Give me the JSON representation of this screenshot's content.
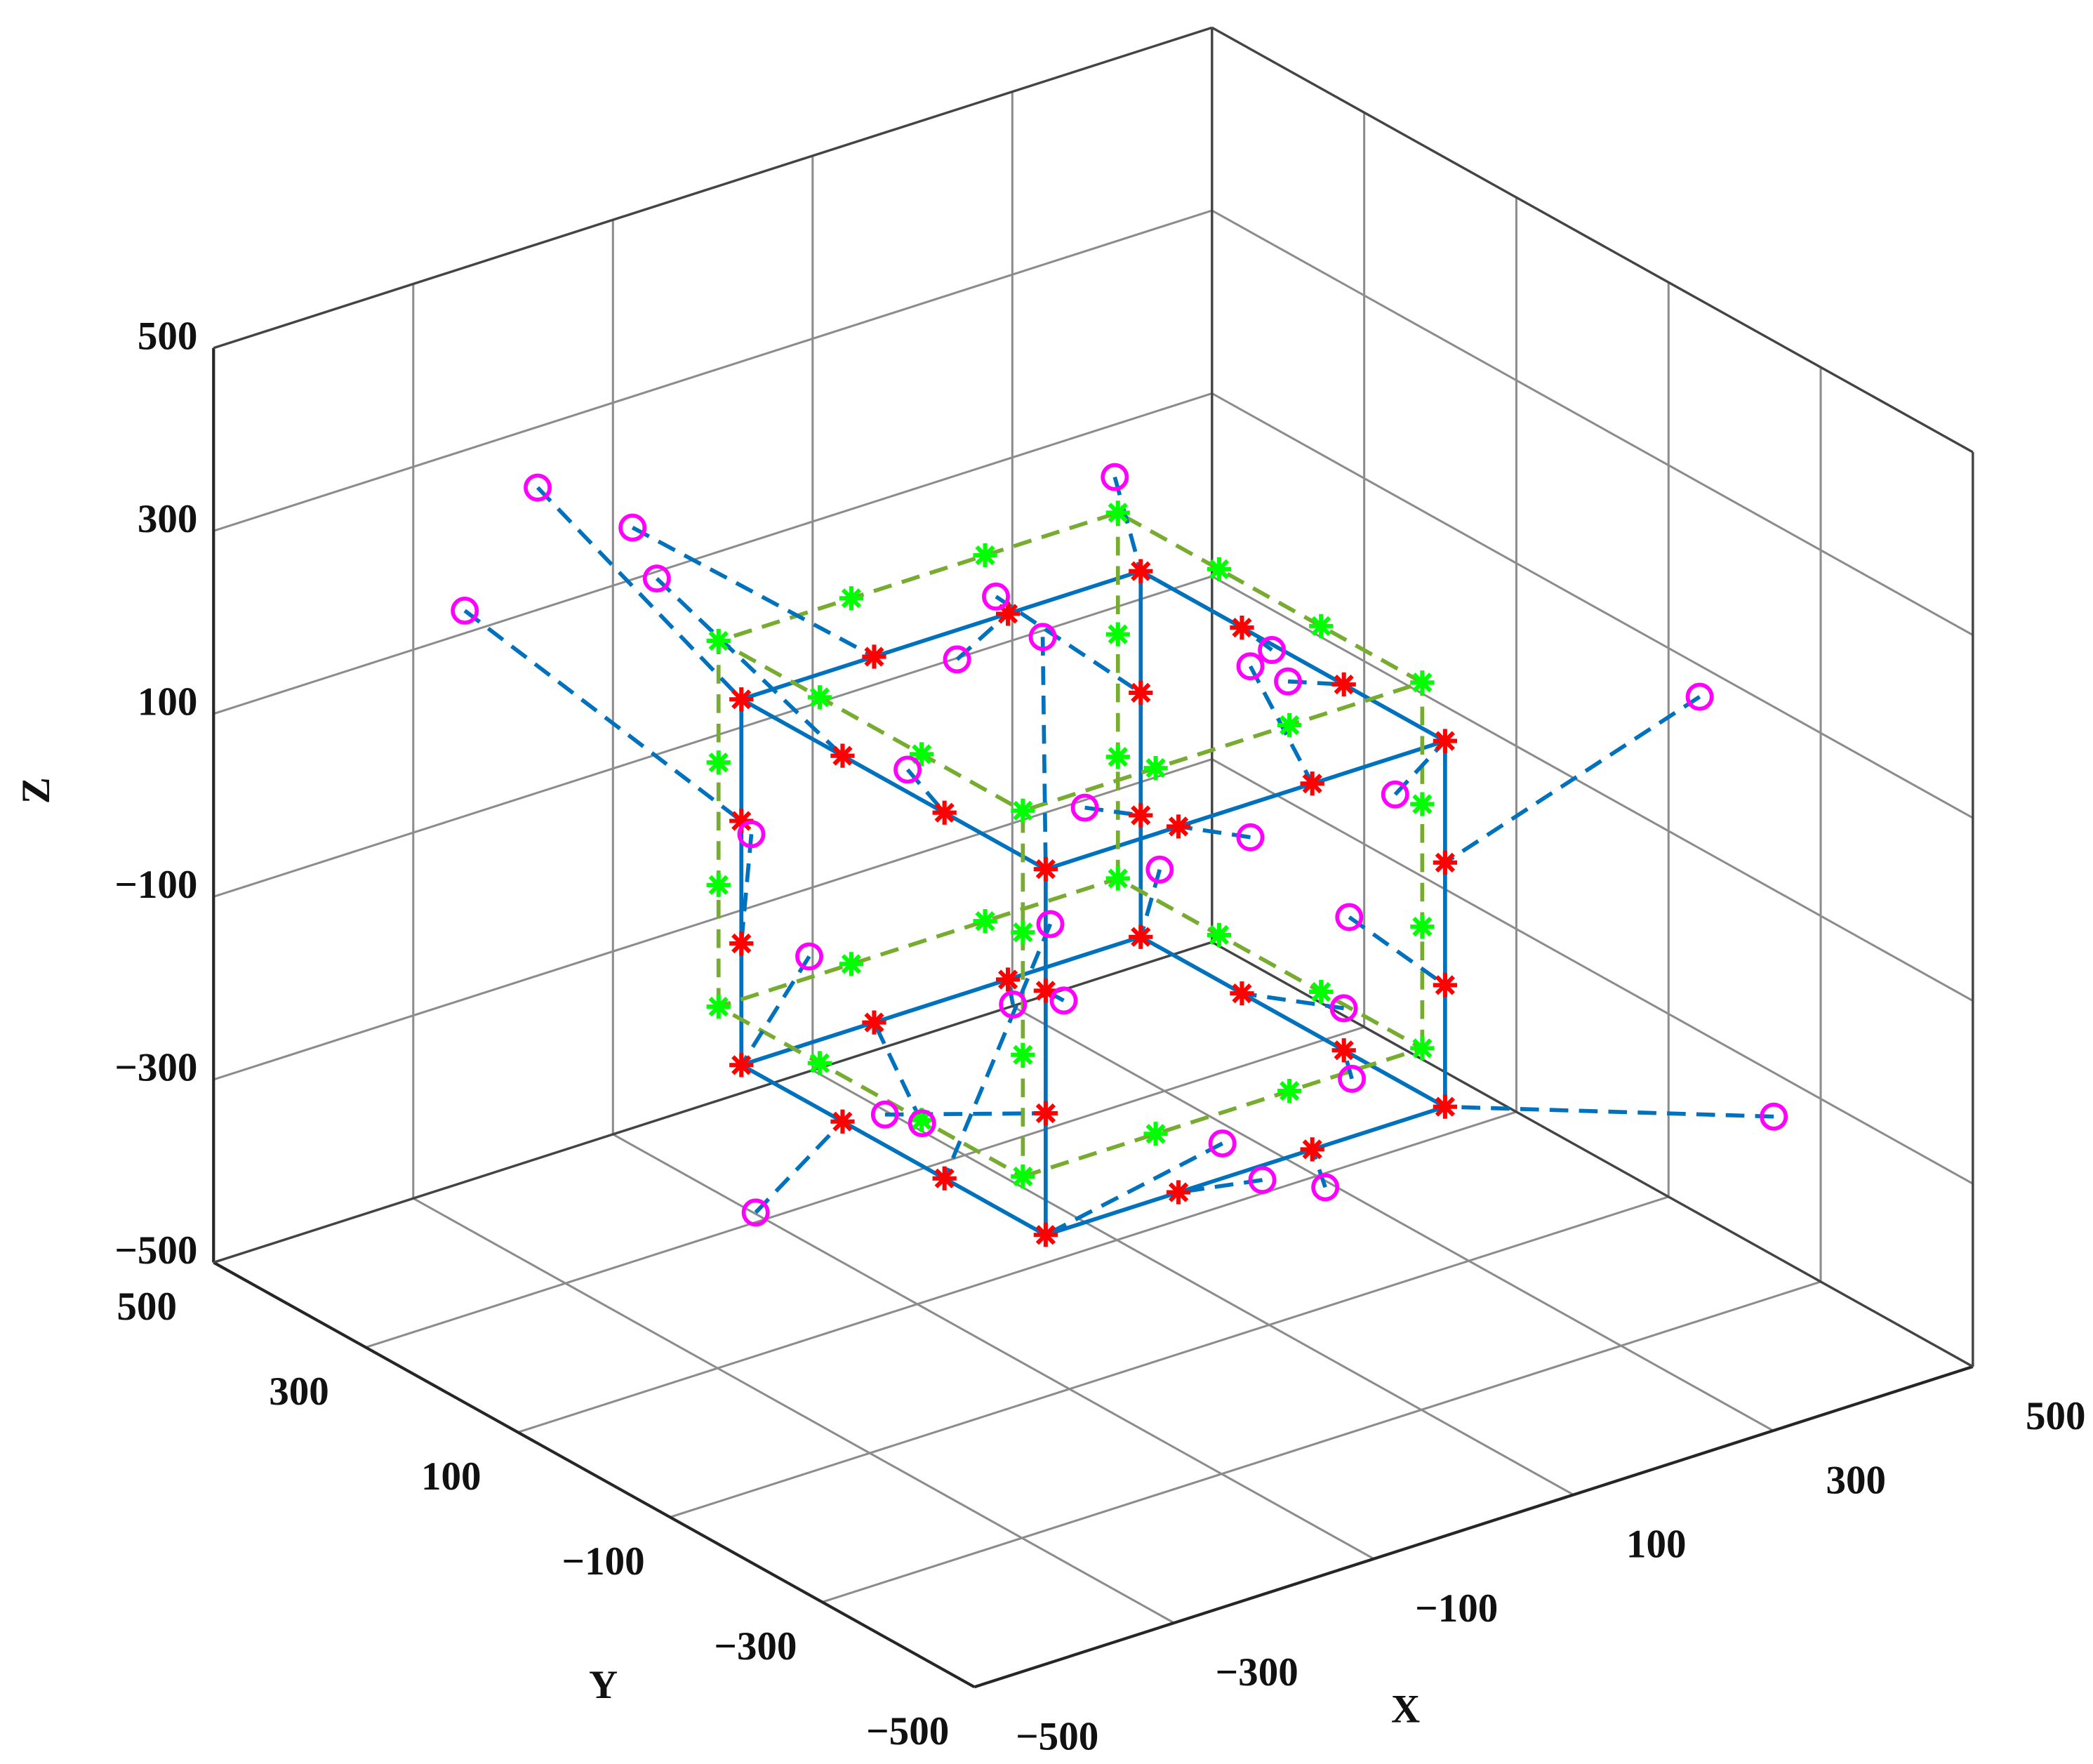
{
  "chart_data": {
    "type": "scatter3d",
    "xlabel": "X",
    "ylabel": "Y",
    "zlabel": "Z",
    "xlim": [
      -500,
      500
    ],
    "ylim": [
      -500,
      500
    ],
    "zlim": [
      -500,
      500
    ],
    "xticks": [
      {
        "value": -500,
        "label": "−500"
      },
      {
        "value": -300,
        "label": "−300"
      },
      {
        "value": -100,
        "label": "−100"
      },
      100,
      300,
      500
    ],
    "yticks": [
      {
        "value": -500,
        "label": "−500"
      },
      {
        "value": -300,
        "label": "−300"
      },
      {
        "value": -100,
        "label": "−100"
      },
      100,
      300,
      500
    ],
    "zticks": [
      {
        "value": -500,
        "label": "−500"
      },
      {
        "value": -300,
        "label": "−300"
      },
      {
        "value": -100,
        "label": "−100"
      },
      100,
      300,
      500
    ],
    "grid": true,
    "series": [
      {
        "color": "#0072BD",
        "line": "solid",
        "marker": "none",
        "x": [
          -200,
          200,
          200,
          -200,
          -200,
          -200,
          200,
          200,
          -200,
          -200,
          null,
          200,
          200,
          null,
          200,
          200,
          null,
          -200,
          -200
        ],
        "y": [
          -200,
          -200,
          200,
          200,
          -200,
          -200,
          -200,
          200,
          200,
          -200,
          null,
          -200,
          -200,
          null,
          200,
          200,
          null,
          200,
          200
        ],
        "z": [
          -250,
          -250,
          -250,
          -250,
          -250,
          150,
          150,
          150,
          150,
          150,
          null,
          -250,
          150,
          null,
          -250,
          150,
          null,
          -250,
          150
        ]
      },
      {
        "color": "#77AC30",
        "line": "dashed",
        "marker": "none",
        "x": [
          -200,
          200,
          200,
          -200,
          -200,
          -200,
          200,
          200,
          -200,
          -200,
          null,
          200,
          200,
          null,
          200,
          200,
          null,
          -200,
          -200
        ],
        "y": [
          -170,
          -170,
          230,
          230,
          -170,
          -170,
          -170,
          230,
          230,
          -170,
          null,
          -170,
          -170,
          null,
          230,
          230,
          null,
          230,
          230
        ],
        "z": [
          -200,
          -200,
          -200,
          -200,
          -200,
          200,
          200,
          200,
          200,
          200,
          null,
          -200,
          200,
          null,
          -200,
          200,
          null,
          -200,
          200
        ]
      },
      {
        "color": "#FF0000",
        "line": "none",
        "marker": "star",
        "x": [
          -200,
          -67,
          67,
          200,
          -200,
          -200,
          -200,
          -67,
          67,
          200,
          200,
          200,
          -200,
          -200,
          -200,
          -200,
          200,
          200,
          200,
          200,
          -200,
          -67,
          67,
          200,
          -200,
          -200,
          -200,
          -67,
          67,
          200,
          200,
          200
        ],
        "y": [
          200,
          200,
          200,
          200,
          67,
          -67,
          -200,
          -200,
          -200,
          -200,
          -67,
          67,
          200,
          200,
          -200,
          -200,
          -200,
          -200,
          200,
          200,
          200,
          200,
          200,
          200,
          67,
          -67,
          -200,
          -200,
          -200,
          -200,
          -67,
          67
        ],
        "z": [
          150,
          150,
          150,
          150,
          150,
          150,
          150,
          150,
          150,
          150,
          150,
          150,
          17,
          -117,
          17,
          -117,
          17,
          -117,
          17,
          -117,
          -250,
          -250,
          -250,
          -250,
          -250,
          -250,
          -250,
          -250,
          -250,
          -250,
          -250,
          -250
        ]
      },
      {
        "color": "#00FF00",
        "line": "none",
        "marker": "star",
        "x": [
          -200,
          -67,
          67,
          200,
          -200,
          -200,
          -200,
          -67,
          67,
          200,
          200,
          200,
          -200,
          -200,
          -200,
          -200,
          200,
          200,
          200,
          200,
          -200,
          -67,
          67,
          200,
          -200,
          -200,
          -200,
          -67,
          67,
          200,
          200,
          200
        ],
        "y": [
          230,
          230,
          230,
          230,
          97,
          -37,
          -170,
          -170,
          -170,
          -170,
          -37,
          97,
          230,
          230,
          -170,
          -170,
          -170,
          -170,
          230,
          230,
          230,
          230,
          230,
          230,
          97,
          -37,
          -170,
          -170,
          -170,
          -170,
          -37,
          97
        ],
        "z": [
          200,
          200,
          200,
          200,
          200,
          200,
          200,
          200,
          200,
          200,
          200,
          200,
          67,
          -67,
          67,
          -67,
          67,
          -67,
          67,
          -67,
          -200,
          -200,
          -200,
          -200,
          -200,
          -200,
          -200,
          -200,
          -200,
          -200,
          -200,
          -200
        ]
      },
      {
        "color": "#FF00FF",
        "line": "none",
        "marker": "circle",
        "link_series": 2,
        "link_color": "#0072BD",
        "link_line": "dashed",
        "x": [
          -404,
          -309,
          16,
          174,
          -386,
          -237,
          -203,
          5,
          5,
          150,
          144,
          230,
          -477,
          -190,
          -182,
          -361,
          455,
          104,
          55,
          144,
          -132,
          -19,
          72,
          219,
          -287,
          -94,
          -23,
          17,
          80,
          453,
          208,
          302
        ],
        "y": [
          200,
          200,
          200,
          200,
          67,
          -67,
          -200,
          -200,
          -200,
          -200,
          -67,
          67,
          200,
          200,
          -200,
          -200,
          -200,
          -200,
          200,
          200,
          200,
          200,
          200,
          200,
          67,
          -67,
          -200,
          -200,
          -200,
          -300,
          -67,
          67
        ],
        "z": [
          453,
          376,
          118,
          262,
          409,
          210,
          405,
          113,
          300,
          109,
          173,
          115,
          344,
          -1,
          0,
          -62,
          109,
          -9,
          173,
          -89,
          -155,
          -377,
          -279,
          -183,
          -319,
          -9,
          -212,
          -266,
          -296,
          -303,
          -284,
          -302
        ]
      }
    ]
  }
}
